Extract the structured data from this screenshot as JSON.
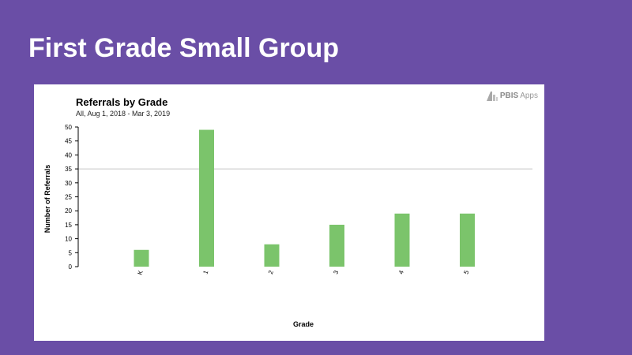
{
  "slide": {
    "title": "First Grade Small Group"
  },
  "brand": {
    "name_bold": "PBIS",
    "name_light": "Apps"
  },
  "chart_data": {
    "type": "bar",
    "title": "Referrals by Grade",
    "subtitle": "All, Aug 1, 2018 - Mar 3, 2019",
    "xlabel": "Grade",
    "ylabel": "Number of Referrals",
    "categories": [
      "K",
      "1",
      "2",
      "3",
      "4",
      "5"
    ],
    "values": [
      6,
      49,
      8,
      15,
      19,
      19
    ],
    "ylim": [
      0,
      50
    ],
    "yticks": [
      0,
      5,
      10,
      15,
      20,
      25,
      30,
      35,
      40,
      45,
      50
    ],
    "reference_line": 35,
    "bar_color": "#7bc46b",
    "reference_line_color": "#c8c8c8",
    "grid": false,
    "legend": "none"
  }
}
